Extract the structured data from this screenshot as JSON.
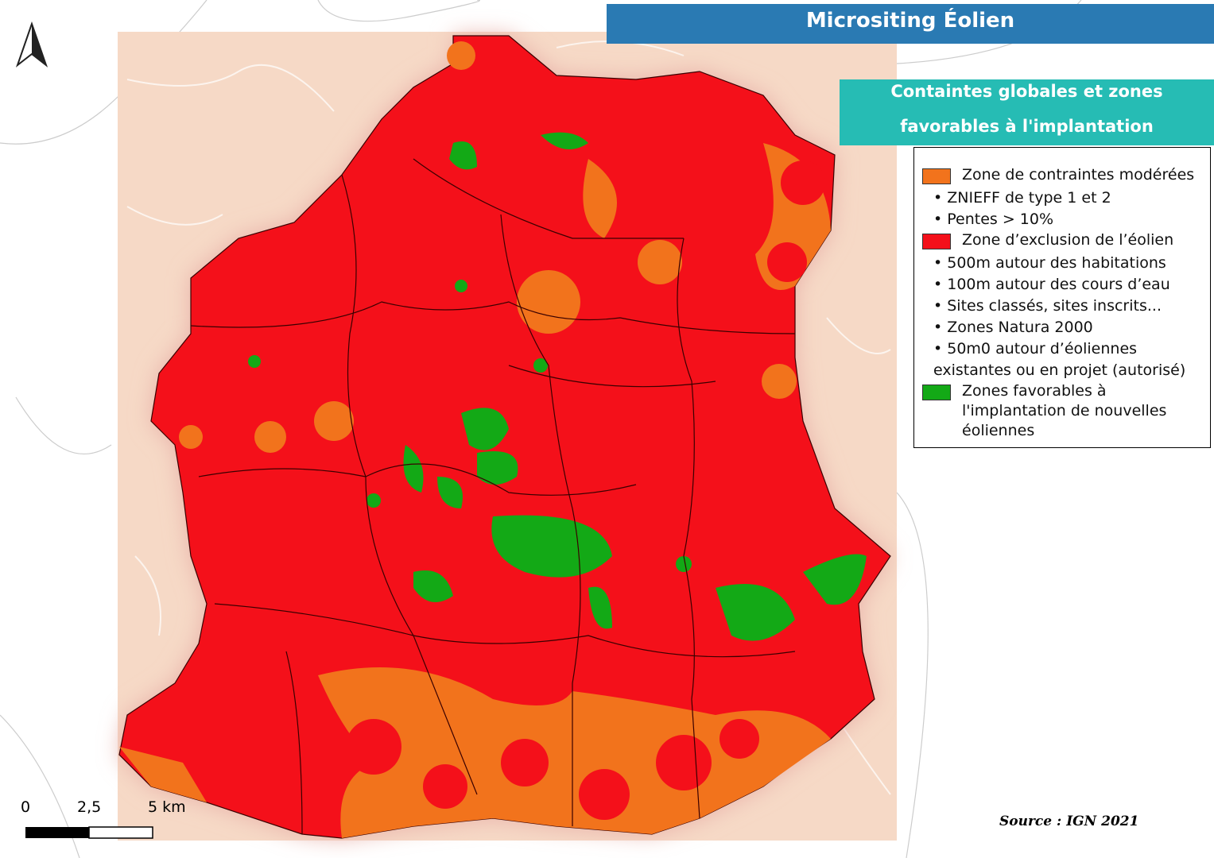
{
  "header": {
    "title": "Micrositing Éolien",
    "subtitle": [
      "Containtes globales et zones",
      "favorables à l'implantation"
    ]
  },
  "legend": [
    {
      "label": "Zone de contraintes modérées",
      "items": [
        "ZNIEFF de type 1 et 2",
        "Pentes > 10%"
      ]
    },
    {
      "label": "Zone d’exclusion de l’éolien",
      "items": [
        "500m autour des habitations",
        "100m autour des cours d’eau",
        "Sites classés, sites inscrits...",
        "Zones Natura 2000",
        "50m0 autour d’éoliennes existantes ou en projet (autorisé)"
      ]
    },
    {
      "label": "Zones favorables à l'implantation de nouvelles éoliennes",
      "items": []
    }
  ],
  "scale_bar": {
    "labels": [
      "0",
      "2,5",
      "5 km"
    ]
  },
  "source": "Source : IGN 2021"
}
